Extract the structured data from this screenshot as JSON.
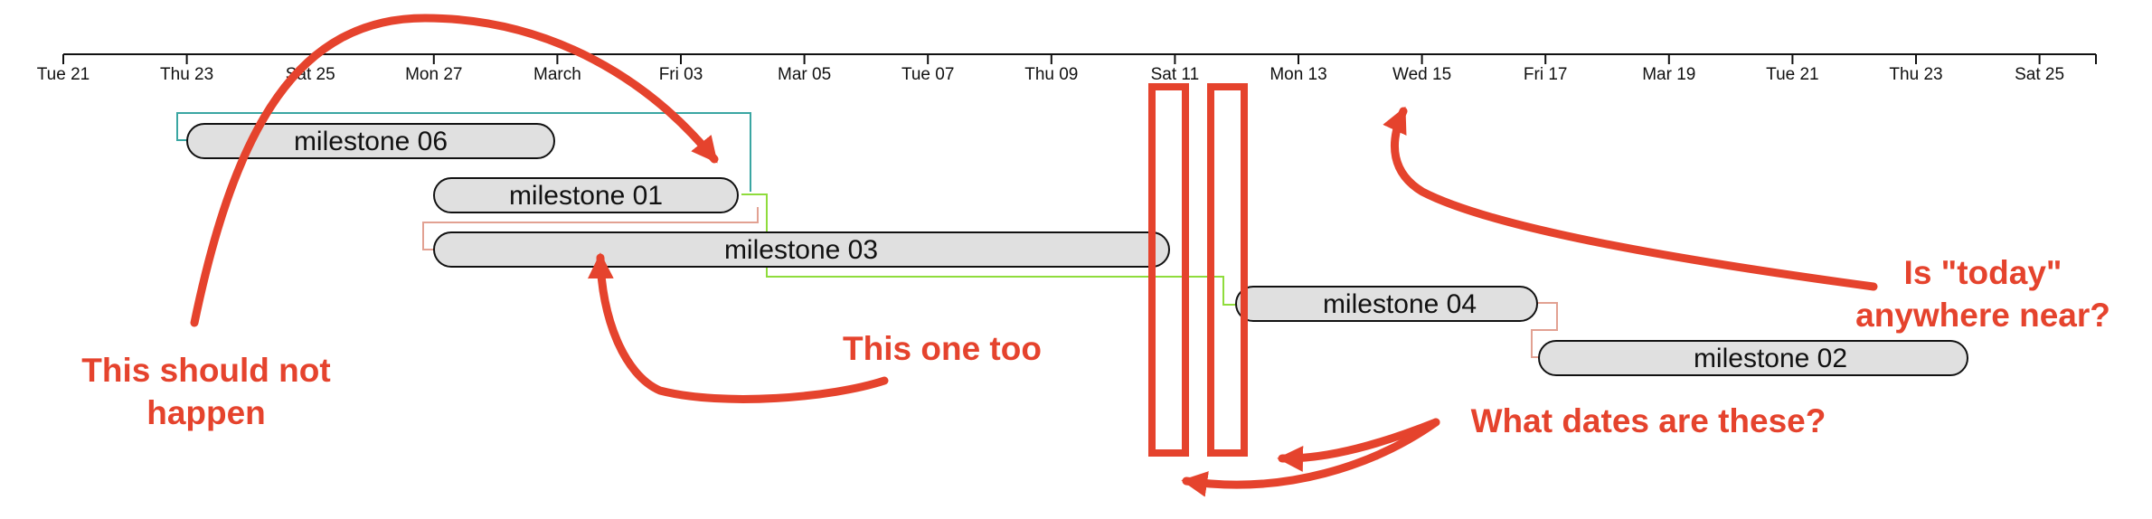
{
  "axis": {
    "ticks": [
      "Tue 21",
      "Thu 23",
      "Sat 25",
      "Mon 27",
      "March",
      "Fri 03",
      "Mar 05",
      "Tue 07",
      "Thu 09",
      "Sat 11",
      "Mon 13",
      "Wed 15",
      "Fri 17",
      "Mar 19",
      "Tue 21",
      "Thu 23",
      "Sat 25"
    ]
  },
  "milestones": [
    {
      "label": "milestone 06"
    },
    {
      "label": "milestone 01"
    },
    {
      "label": "milestone 03"
    },
    {
      "label": "milestone 04"
    },
    {
      "label": "milestone 02"
    }
  ],
  "connectors": [
    {
      "from": "milestone 06",
      "to": "milestone 04",
      "color": "#3aa6a2"
    },
    {
      "from": "milestone 01",
      "to": "milestone 04",
      "color": "#8fdc3c"
    },
    {
      "from": "milestone 03",
      "to": "milestone 01",
      "color": "#e2a192"
    },
    {
      "from": "milestone 02",
      "to": "milestone 04",
      "color": "#e2a192"
    }
  ],
  "annotations": {
    "should_not_happen": [
      "This should not",
      "happen"
    ],
    "this_one_too": "This one too",
    "what_dates": "What dates are these?",
    "today": [
      "Is \"today\"",
      "anywhere near?"
    ]
  },
  "colors": {
    "annotation": "#e5432d",
    "bar_fill": "#e0e0e0",
    "bar_stroke": "#111111",
    "axis": "#111111"
  }
}
